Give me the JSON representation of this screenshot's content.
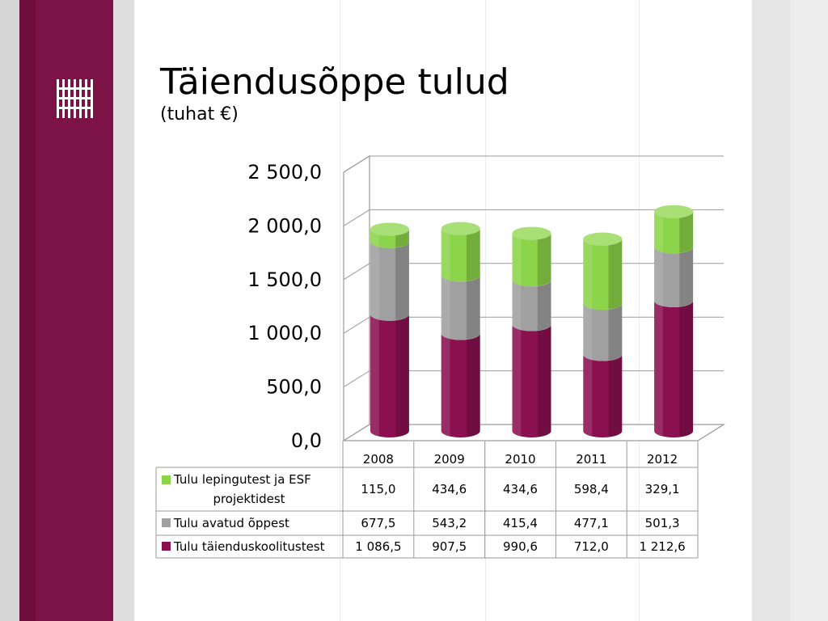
{
  "slide": {
    "title": "Täiendusõppe tulud",
    "subtitle": "(tuhat €)",
    "colors": {
      "sidebar": "#7b1347",
      "sidebar_dark": "#6e0f3c"
    },
    "logo_icon": "institution-logo-icon"
  },
  "chart_data": {
    "type": "bar",
    "stacked": true,
    "style": "3d-cylinder",
    "categories": [
      "2008",
      "2009",
      "2010",
      "2011",
      "2012"
    ],
    "y_ticks": [
      "0,0",
      "500,0",
      "1 000,0",
      "1 500,0",
      "2 000,0",
      "2 500,0"
    ],
    "ylim": [
      0,
      2500
    ],
    "grid": true,
    "legend": "data-table-below",
    "series": [
      {
        "name": "Tulu täienduskoolitustest",
        "color": "#8b1050",
        "values": [
          1086.5,
          907.5,
          990.6,
          712.0,
          1212.6
        ],
        "labels": [
          "1 086,5",
          "907,5",
          "990,6",
          "712,0",
          "1 212,6"
        ]
      },
      {
        "name": "Tulu avatud õppest",
        "color": "#a0a0a0",
        "values": [
          677.5,
          543.2,
          415.4,
          477.1,
          501.3
        ],
        "labels": [
          "677,5",
          "543,2",
          "415,4",
          "477,1",
          "501,3"
        ]
      },
      {
        "name": "Tulu lepingutest ja ESF projektidest",
        "color": "#8cd44a",
        "values": [
          115.0,
          434.6,
          434.6,
          598.4,
          329.1
        ],
        "labels": [
          "115,0",
          "434,6",
          "434,6",
          "598,4",
          "329,1"
        ]
      }
    ]
  }
}
